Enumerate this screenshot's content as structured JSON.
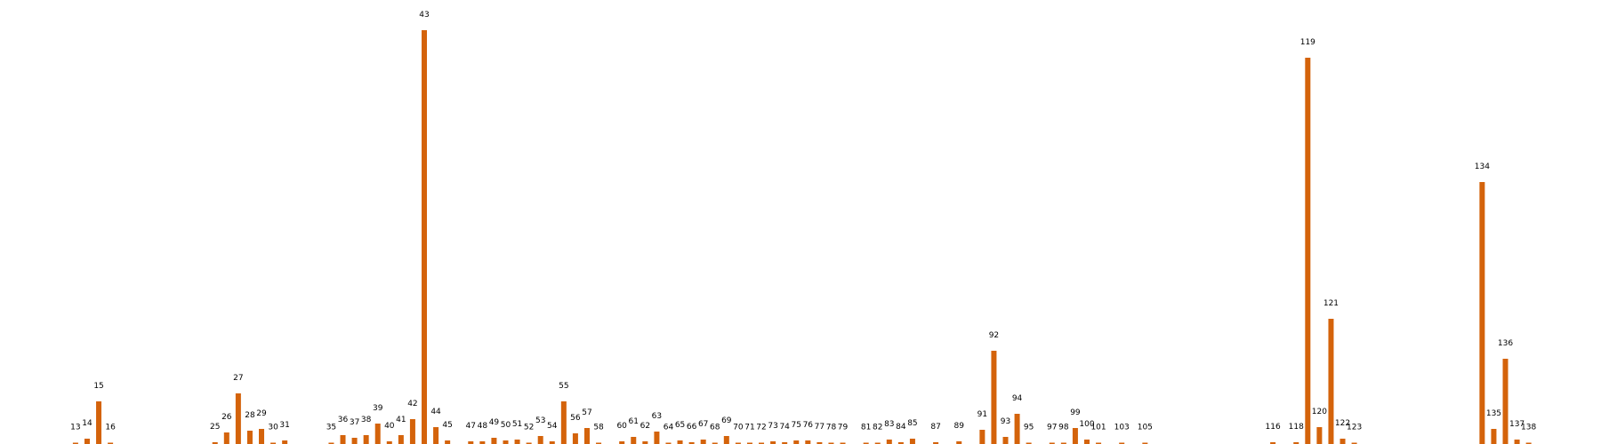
{
  "chart_data": {
    "type": "bar",
    "bar_color": "#d4630b",
    "grid": false,
    "axes_visible": false,
    "ylim": [
      0,
      476
    ],
    "categories": [
      13,
      14,
      15,
      16,
      25,
      26,
      27,
      28,
      29,
      30,
      31,
      35,
      36,
      37,
      38,
      39,
      40,
      41,
      42,
      43,
      44,
      45,
      47,
      48,
      49,
      50,
      51,
      52,
      53,
      54,
      55,
      56,
      57,
      58,
      60,
      61,
      62,
      63,
      64,
      65,
      66,
      67,
      68,
      69,
      70,
      71,
      72,
      73,
      74,
      75,
      76,
      77,
      78,
      79,
      81,
      82,
      83,
      84,
      85,
      87,
      89,
      91,
      92,
      93,
      94,
      95,
      97,
      98,
      99,
      100,
      101,
      103,
      105,
      116,
      118,
      119,
      120,
      121,
      122,
      123,
      134,
      135,
      136,
      137,
      138
    ],
    "values": [
      1,
      6,
      48,
      0,
      2,
      13,
      57,
      15,
      17,
      0,
      4,
      1,
      10,
      7,
      10,
      23,
      3,
      10,
      28,
      466,
      19,
      4,
      3,
      3,
      7,
      4,
      5,
      1,
      9,
      3,
      48,
      12,
      18,
      1,
      3,
      8,
      3,
      14,
      1,
      4,
      2,
      5,
      1,
      9,
      1,
      1,
      1,
      3,
      2,
      4,
      4,
      2,
      1,
      0,
      0,
      0,
      5,
      2,
      6,
      2,
      3,
      16,
      105,
      8,
      34,
      1,
      1,
      1,
      18,
      5,
      1,
      1,
      0,
      2,
      2,
      435,
      19,
      141,
      6,
      0,
      295,
      17,
      96,
      5,
      0
    ]
  }
}
